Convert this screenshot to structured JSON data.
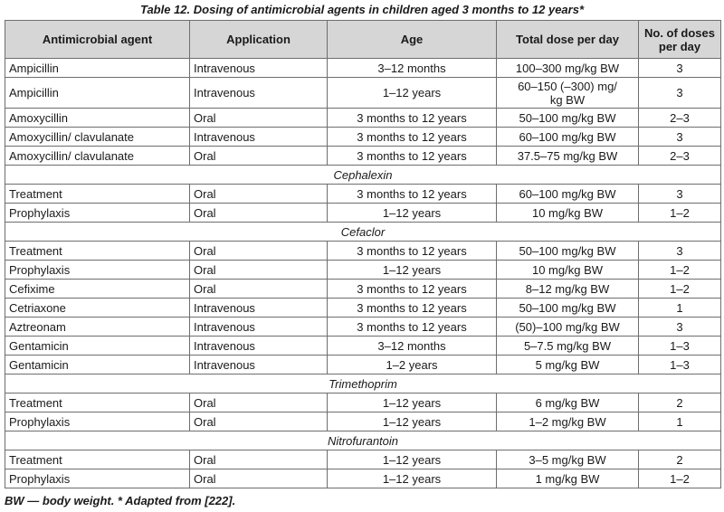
{
  "caption": "Table 12. Dosing of antimicrobial agents in children aged 3 months to 12 years*",
  "headers": {
    "agent": "Antimicrobial agent",
    "application": "Application",
    "age": "Age",
    "dose": "Total dose per day",
    "doses_line1": "No. of doses",
    "doses_line2": "per day"
  },
  "rows": [
    {
      "type": "row",
      "agent": "Ampicillin",
      "application": "Intravenous",
      "age": "3–12 months",
      "dose": "100–300 mg/kg BW",
      "doses": "3"
    },
    {
      "type": "row",
      "tall": true,
      "agent": "Ampicillin",
      "application": "Intravenous",
      "age": "1–12 years",
      "dose_line1": "60–150 (–300) mg/",
      "dose_line2": "kg BW",
      "doses": "3"
    },
    {
      "type": "row",
      "agent": "Amoxycillin",
      "application": "Oral",
      "age": "3 months to 12 years",
      "dose": "50–100 mg/kg BW",
      "doses": "2–3"
    },
    {
      "type": "row",
      "agent": "Amoxycillin/ clavulanate",
      "application": "Intravenous",
      "age": "3 months to 12 years",
      "dose": "60–100 mg/kg BW",
      "doses": "3"
    },
    {
      "type": "row",
      "agent": "Amoxycillin/ clavulanate",
      "application": "Oral",
      "age": "3 months to 12 years",
      "dose": "37.5–75 mg/kg BW",
      "doses": "2–3"
    },
    {
      "type": "section",
      "label": "Cephalexin"
    },
    {
      "type": "row",
      "agent": "Treatment",
      "application": "Oral",
      "age": "3 months to 12 years",
      "dose": "60–100 mg/kg BW",
      "doses": "3"
    },
    {
      "type": "row",
      "agent": "Prophylaxis",
      "application": "Oral",
      "age": "1–12 years",
      "dose": "10 mg/kg BW",
      "doses": "1–2"
    },
    {
      "type": "section",
      "label": "Cefaclor"
    },
    {
      "type": "row",
      "agent": "Treatment",
      "application": "Oral",
      "age": "3 months to 12 years",
      "dose": "50–100 mg/kg BW",
      "doses": "3"
    },
    {
      "type": "row",
      "agent": "Prophylaxis",
      "application": "Oral",
      "age": "1–12 years",
      "dose": "10 mg/kg BW",
      "doses": "1–2"
    },
    {
      "type": "row",
      "agent": "Cefixime",
      "application": "Oral",
      "age": "3 months to 12 years",
      "dose": "8–12 mg/kg BW",
      "doses": "1–2"
    },
    {
      "type": "row",
      "agent": "Cetriaxone",
      "application": "Intravenous",
      "age": "3 months to 12 years",
      "dose": "50–100 mg/kg BW",
      "doses": "1"
    },
    {
      "type": "row",
      "agent": "Aztreonam",
      "application": "Intravenous",
      "age": "3 months to 12 years",
      "dose": "(50)–100 mg/kg BW",
      "doses": "3"
    },
    {
      "type": "row",
      "agent": "Gentamicin",
      "application": "Intravenous",
      "age": "3–12 months",
      "dose": "5–7.5 mg/kg BW",
      "doses": "1–3"
    },
    {
      "type": "row",
      "agent": "Gentamicin",
      "application": "Intravenous",
      "age": "1–2 years",
      "dose": "5 mg/kg BW",
      "doses": "1–3"
    },
    {
      "type": "section",
      "label": "Trimethoprim"
    },
    {
      "type": "row",
      "agent": "Treatment",
      "application": "Oral",
      "age": "1–12 years",
      "dose": "6 mg/kg BW",
      "doses": "2"
    },
    {
      "type": "row",
      "agent": "Prophylaxis",
      "application": "Oral",
      "age": "1–12 years",
      "dose": "1–2 mg/kg BW",
      "doses": "1"
    },
    {
      "type": "section",
      "label": "Nitrofurantoin"
    },
    {
      "type": "row",
      "agent": "Treatment",
      "application": "Oral",
      "age": "1–12 years",
      "dose": "3–5 mg/kg BW",
      "doses": "2"
    },
    {
      "type": "row",
      "agent": "Prophylaxis",
      "application": "Oral",
      "age": "1–12 years",
      "dose": "1 mg/kg BW",
      "doses": "1–2"
    }
  ],
  "footnote": "BW — body weight. * Adapted from [222]."
}
